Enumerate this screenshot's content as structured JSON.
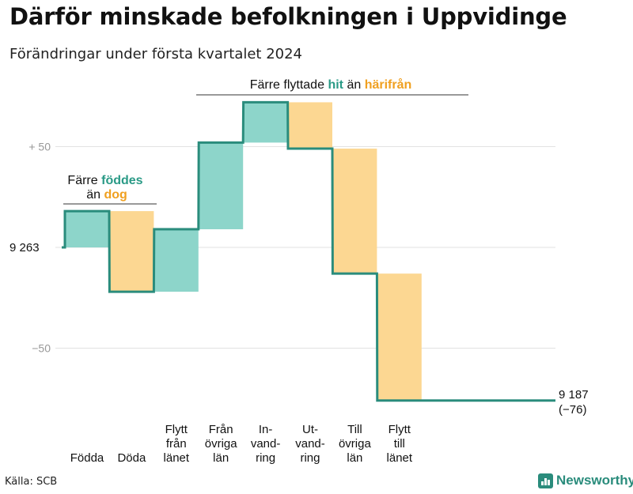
{
  "title": "Därför minskade befolkningen i Uppvidinge",
  "subtitle": "Förändringar under första kvartalet 2024",
  "source": "Källa: SCB",
  "brand": "Newsworthy",
  "colors": {
    "increase": "#8dd5ca",
    "decrease": "#fcd792",
    "line": "#2a8c7c",
    "accent_increase": "#2a9a86",
    "accent_decrease": "#f0a020",
    "grid": "#e2e2e2",
    "tick_text": "#999999"
  },
  "annotations": {
    "births": {
      "line1": "Färre",
      "line1_highlight": "föddes",
      "line2": "än",
      "line2_highlight": "dog"
    },
    "migration": {
      "pre": "Färre flyttade",
      "highlight_1": "hit",
      "mid": "än",
      "highlight_2": "härifrån"
    }
  },
  "chart_data": {
    "type": "waterfall",
    "start_value": 9263,
    "end_value": 9187,
    "start_label": "9 263",
    "end_label": "9 187",
    "end_change_label": "(−76)",
    "yticks": [
      {
        "value": 50,
        "label": "+  50"
      },
      {
        "value": 0,
        "label": ""
      },
      {
        "value": -50,
        "label": "−50"
      }
    ],
    "ylim": [
      -85,
      75
    ],
    "steps": [
      {
        "label": "Födda",
        "change": 18
      },
      {
        "label": "Döda",
        "change": -40
      },
      {
        "label": "Flytt från länet",
        "label_lines": [
          "Flytt",
          "från",
          "länet"
        ],
        "change": 31
      },
      {
        "label": "Från övriga län",
        "label_lines": [
          "Från",
          "övriga",
          "län"
        ],
        "change": 43
      },
      {
        "label": "In-vandring",
        "label_lines": [
          "In-",
          "vand-",
          "ring"
        ],
        "change": 20
      },
      {
        "label": "Ut-vandring",
        "label_lines": [
          "Ut-",
          "vand-",
          "ring"
        ],
        "change": -23
      },
      {
        "label": "Till övriga län",
        "label_lines": [
          "Till",
          "övriga",
          "län"
        ],
        "change": -62
      },
      {
        "label": "Flytt till länet",
        "label_lines": [
          "Flytt",
          "till",
          "länet"
        ],
        "change": -63
      }
    ],
    "grid": true,
    "legend": "none"
  }
}
